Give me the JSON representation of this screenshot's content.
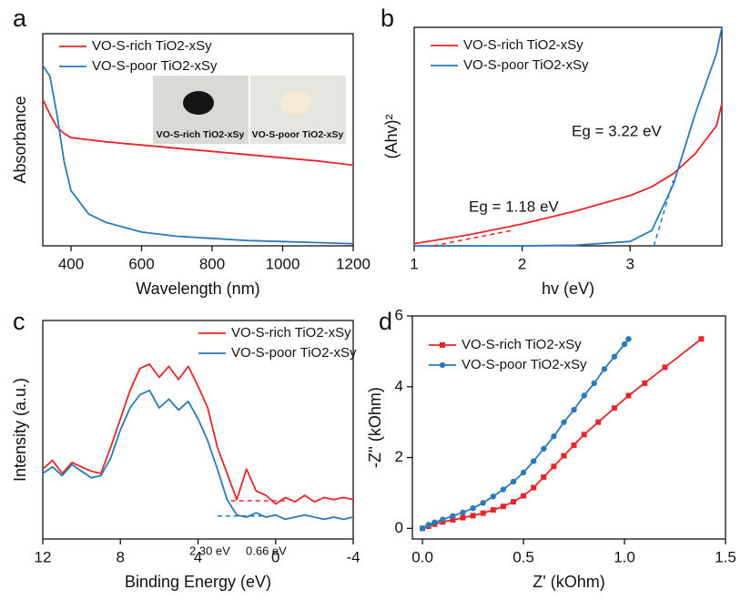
{
  "chart_data": [
    {
      "type": "line",
      "panel_label": "a",
      "x_label": "Wavelength (nm)",
      "y_label": "Absorbance",
      "x": [
        320,
        340,
        360,
        380,
        400,
        450,
        500,
        600,
        700,
        800,
        900,
        1000,
        1100,
        1200
      ],
      "series": [
        {
          "name": "VO-S-rich TiO2-xSy",
          "color": "#e8262a",
          "values": [
            0.69,
            0.62,
            0.56,
            0.53,
            0.51,
            0.5,
            0.49,
            0.475,
            0.46,
            0.445,
            0.43,
            0.415,
            0.4,
            0.38
          ]
        },
        {
          "name": "VO-S-poor TiO2-xSy",
          "color": "#2a7ab9",
          "values": [
            0.85,
            0.8,
            0.62,
            0.4,
            0.26,
            0.15,
            0.11,
            0.065,
            0.045,
            0.035,
            0.025,
            0.02,
            0.015,
            0.01
          ]
        }
      ],
      "xlim": [
        320,
        1200
      ],
      "xticks": [
        400,
        600,
        800,
        1000,
        1200
      ],
      "ylim": [
        0,
        1
      ],
      "legend": "upper left",
      "insets": [
        {
          "label": "VO-S-rich TiO2-xSy"
        },
        {
          "label": "VO-S-poor TiO2-xSy"
        }
      ]
    },
    {
      "type": "line",
      "panel_label": "b",
      "x_label": "hv (eV)",
      "y_label": "(Ahv)²",
      "x": [
        1,
        1.5,
        2,
        2.5,
        3,
        3.2,
        3.4,
        3.6,
        3.8,
        3.85
      ],
      "series": [
        {
          "name": "VO-S-rich TiO2-xSy",
          "color": "#e8262a",
          "values": [
            0.01,
            0.05,
            0.1,
            0.16,
            0.23,
            0.27,
            0.33,
            0.42,
            0.55,
            0.65
          ]
        },
        {
          "name": "VO-S-poor TiO2-xSy",
          "color": "#2a7ab9",
          "values": [
            0,
            0,
            0,
            0.003,
            0.02,
            0.07,
            0.28,
            0.6,
            0.88,
            1.0
          ]
        }
      ],
      "tangents": [
        {
          "color": "#e8262a",
          "x": [
            1.18,
            1.9
          ],
          "y": [
            0,
            0.07
          ]
        },
        {
          "color": "#2a7ab9",
          "x": [
            3.22,
            3.4
          ],
          "y": [
            0,
            0.3
          ]
        }
      ],
      "annotations": [
        {
          "text": "Eg = 1.18 eV",
          "color": "#e8262a"
        },
        {
          "text": "Eg = 3.22 eV",
          "color": "#2a7ab9"
        }
      ],
      "xlim": [
        1,
        3.85
      ],
      "xticks": [
        1,
        2,
        3
      ],
      "ylim": [
        0,
        1
      ],
      "legend": "upper left"
    },
    {
      "type": "line",
      "panel_label": "c",
      "x_label": "Binding Energy (eV)",
      "y_label": "Intensity (a.u.)",
      "x": [
        12,
        11.5,
        11,
        10.5,
        10,
        9.5,
        9,
        8.5,
        8,
        7.5,
        7,
        6.5,
        6,
        5.5,
        5,
        4.5,
        4,
        3.5,
        3,
        2.5,
        2,
        1.5,
        1,
        0.5,
        0,
        -0.5,
        -1,
        -1.5,
        -2,
        -2.5,
        -3,
        -3.5,
        -4
      ],
      "series": [
        {
          "name": "VO-S-rich TiO2-xSy",
          "color": "#e8262a",
          "values": [
            0.32,
            0.36,
            0.3,
            0.35,
            0.33,
            0.31,
            0.3,
            0.42,
            0.55,
            0.68,
            0.78,
            0.8,
            0.74,
            0.79,
            0.73,
            0.79,
            0.7,
            0.6,
            0.42,
            0.3,
            0.18,
            0.32,
            0.22,
            0.2,
            0.16,
            0.19,
            0.17,
            0.2,
            0.17,
            0.19,
            0.18,
            0.19,
            0.18
          ]
        },
        {
          "name": "VO-S-poor TiO2-xSy",
          "color": "#2a7ab9",
          "values": [
            0.3,
            0.33,
            0.29,
            0.34,
            0.31,
            0.28,
            0.29,
            0.37,
            0.5,
            0.6,
            0.66,
            0.68,
            0.6,
            0.64,
            0.59,
            0.63,
            0.55,
            0.45,
            0.32,
            0.18,
            0.11,
            0.1,
            0.12,
            0.1,
            0.11,
            0.09,
            0.1,
            0.11,
            0.1,
            0.09,
            0.1,
            0.09,
            0.1
          ]
        }
      ],
      "tangents": [
        {
          "color": "#2a7ab9",
          "x": [
            3,
            0.5
          ],
          "y": [
            0.105,
            0.105
          ]
        },
        {
          "color": "#e8262a",
          "x": [
            2.3,
            -0.5
          ],
          "y": [
            0.175,
            0.175
          ]
        }
      ],
      "annotations": [
        {
          "text": "2.30 eV",
          "color": "#2a7ab9"
        },
        {
          "text": "0.66 eV",
          "color": "#e8262a"
        }
      ],
      "xlim": [
        12,
        -4
      ],
      "xticks": [
        12,
        8,
        4,
        0,
        -4
      ],
      "ylim": [
        0,
        1
      ],
      "legend": "upper right"
    },
    {
      "type": "line",
      "panel_label": "d",
      "x_label": "Z' (kOhm)",
      "y_label": "-Z'' (kOhm)",
      "series": [
        {
          "name": "VO-S-rich TiO2-xSy",
          "color": "#e8262a",
          "marker": "square",
          "x": [
            0,
            0.03,
            0.06,
            0.1,
            0.15,
            0.2,
            0.25,
            0.3,
            0.35,
            0.4,
            0.45,
            0.5,
            0.55,
            0.6,
            0.65,
            0.7,
            0.75,
            0.8,
            0.87,
            0.95,
            1.02,
            1.1,
            1.2,
            1.38
          ],
          "values": [
            0,
            0.06,
            0.12,
            0.18,
            0.24,
            0.3,
            0.36,
            0.43,
            0.52,
            0.62,
            0.75,
            0.92,
            1.15,
            1.45,
            1.75,
            2.05,
            2.35,
            2.65,
            3.0,
            3.4,
            3.75,
            4.1,
            4.55,
            5.35
          ]
        },
        {
          "name": "VO-S-poor TiO2-xSy",
          "color": "#2a7ab9",
          "marker": "circle",
          "x": [
            0,
            0.03,
            0.06,
            0.1,
            0.15,
            0.2,
            0.25,
            0.3,
            0.35,
            0.4,
            0.45,
            0.5,
            0.55,
            0.6,
            0.65,
            0.7,
            0.75,
            0.8,
            0.85,
            0.9,
            0.95,
            1.0,
            1.02
          ],
          "values": [
            0,
            0.1,
            0.17,
            0.25,
            0.35,
            0.45,
            0.57,
            0.72,
            0.9,
            1.1,
            1.32,
            1.58,
            1.9,
            2.25,
            2.6,
            3.0,
            3.35,
            3.75,
            4.1,
            4.5,
            4.85,
            5.2,
            5.35
          ]
        }
      ],
      "xlim": [
        -0.05,
        1.5
      ],
      "xticks": [
        {
          "value": 0,
          "label": "0.0"
        },
        0.5,
        {
          "value": 1,
          "label": "1.0"
        },
        1.5
      ],
      "ylim": [
        -0.3,
        6
      ],
      "yticks": [
        0,
        2,
        4,
        6
      ],
      "legend": "upper left"
    }
  ]
}
